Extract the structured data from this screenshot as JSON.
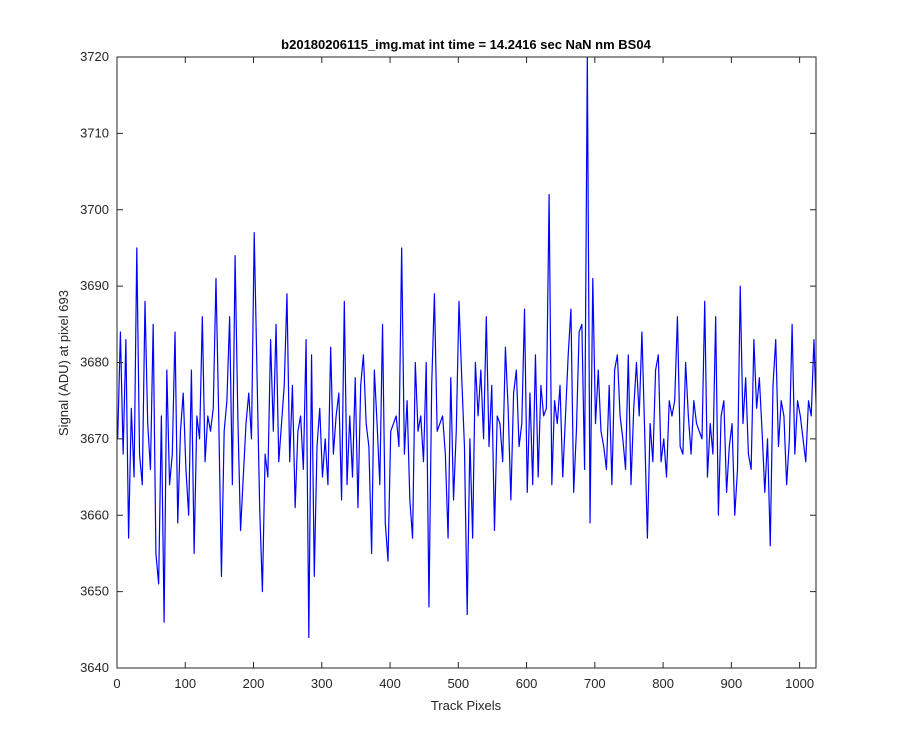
{
  "chart_data": {
    "type": "line",
    "title": "b20180206115_img.mat int time = 14.2416 sec  NaN nm BS04",
    "xlabel": "Track Pixels",
    "ylabel": "Signal (ADU) at pixel 693",
    "xlim": [
      0,
      1024
    ],
    "ylim": [
      3640,
      3720
    ],
    "xticks": [
      0,
      100,
      200,
      300,
      400,
      500,
      600,
      700,
      800,
      900,
      1000
    ],
    "yticks": [
      3640,
      3650,
      3660,
      3670,
      3680,
      3690,
      3700,
      3710,
      3720
    ],
    "grid": false,
    "legend": "none",
    "series": [
      {
        "color": "#0000ff",
        "points_sampled_every_4_pixels": {
          "x_start": 1,
          "x_step": 4,
          "values": [
            3670,
            3684,
            3668,
            3683,
            3657,
            3674,
            3665,
            3695,
            3668,
            3664,
            3688,
            3672,
            3666,
            3685,
            3655,
            3651,
            3673,
            3646,
            3679,
            3664,
            3668,
            3684,
            3659,
            3671,
            3676,
            3666,
            3660,
            3679,
            3655,
            3673,
            3670,
            3686,
            3667,
            3673,
            3671,
            3674,
            3691,
            3673,
            3652,
            3671,
            3675,
            3686,
            3664,
            3694,
            3673,
            3658,
            3665,
            3672,
            3676,
            3670,
            3697,
            3679,
            3661,
            3650,
            3668,
            3665,
            3683,
            3671,
            3685,
            3667,
            3672,
            3677,
            3689,
            3667,
            3677,
            3661,
            3671,
            3673,
            3666,
            3683,
            3644,
            3681,
            3652,
            3669,
            3674,
            3665,
            3670,
            3664,
            3682,
            3668,
            3673,
            3676,
            3662,
            3688,
            3664,
            3673,
            3665,
            3678,
            3661,
            3677,
            3681,
            3672,
            3669,
            3655,
            3679,
            3672,
            3664,
            3685,
            3659,
            3654,
            3671,
            3672,
            3673,
            3669,
            3695,
            3668,
            3675,
            3662,
            3657,
            3680,
            3671,
            3673,
            3667,
            3680,
            3648,
            3677,
            3689,
            3671,
            3672,
            3673,
            3668,
            3657,
            3678,
            3662,
            3671,
            3688,
            3678,
            3669,
            3647,
            3670,
            3657,
            3680,
            3673,
            3679,
            3670,
            3686,
            3669,
            3677,
            3658,
            3673,
            3672,
            3667,
            3682,
            3674,
            3662,
            3676,
            3679,
            3669,
            3672,
            3687,
            3663,
            3676,
            3664,
            3681,
            3665,
            3677,
            3673,
            3674,
            3702,
            3664,
            3675,
            3672,
            3677,
            3665,
            3673,
            3681,
            3687,
            3663,
            3671,
            3684,
            3685,
            3666,
            3720,
            3659,
            3691,
            3672,
            3679,
            3671,
            3669,
            3666,
            3677,
            3664,
            3679,
            3681,
            3673,
            3670,
            3666,
            3681,
            3664,
            3674,
            3680,
            3673,
            3684,
            3671,
            3657,
            3672,
            3667,
            3679,
            3681,
            3667,
            3670,
            3665,
            3675,
            3673,
            3675,
            3686,
            3669,
            3668,
            3680,
            3673,
            3668,
            3675,
            3672,
            3671,
            3670,
            3688,
            3665,
            3672,
            3668,
            3686,
            3660,
            3673,
            3675,
            3663,
            3669,
            3672,
            3660,
            3666,
            3690,
            3672,
            3678,
            3668,
            3666,
            3683,
            3674,
            3678,
            3671,
            3663,
            3670,
            3656,
            3677,
            3683,
            3669,
            3675,
            3673,
            3664,
            3670,
            3685,
            3668,
            3675,
            3673,
            3670,
            3667,
            3675,
            3673,
            3683,
            3672,
            3676,
            3666,
            3674,
            3668,
            3681,
            3672,
            3670
          ]
        }
      }
    ]
  }
}
